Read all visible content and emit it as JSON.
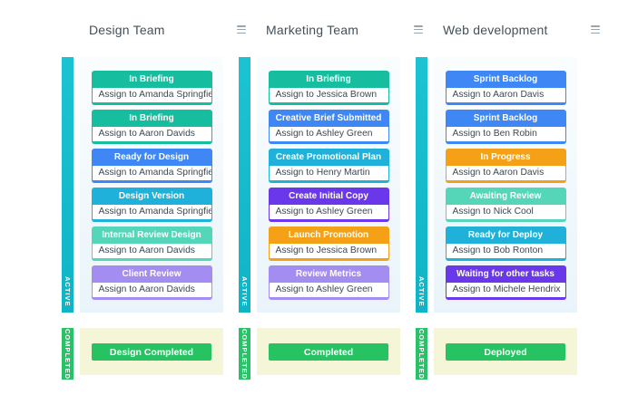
{
  "palette": {
    "teal": "#16bd9e",
    "blue": "#3e87f5",
    "cyan": "#1fb1d9",
    "mint": "#55d6b9",
    "lavender": "#a48df1",
    "violet": "#6a38ea",
    "orange": "#f4a118",
    "active_bar": "#12b9c9",
    "completed_bar": "#2bc168",
    "completed_panel": "#f5f5d8",
    "button_green": "#27c261"
  },
  "board": {
    "columns": [
      {
        "title": "Design Team",
        "active_label": "ACTIVE",
        "completed_label": "COMPLETED",
        "completed_button": "Design Completed",
        "cards": [
          {
            "status": "In Briefing",
            "color": "teal",
            "assignee": "Assign to Amanda Springfield"
          },
          {
            "status": "In Briefing",
            "color": "teal",
            "assignee": "Assign to Aaron Davids"
          },
          {
            "status": "Ready for Design",
            "color": "blue",
            "assignee": "Assign to Amanda Springfield"
          },
          {
            "status": "Design Version",
            "color": "cyan",
            "assignee": "Assign to Amanda Springfield"
          },
          {
            "status": "Internal Review Design",
            "color": "mint",
            "assignee": "Assign to Aaron Davids"
          },
          {
            "status": "Client Review",
            "color": "lavender",
            "assignee": "Assign to Aaron Davids"
          }
        ]
      },
      {
        "title": "Marketing Team",
        "active_label": "ACTIVE",
        "completed_label": "COMPLETED",
        "completed_button": "Completed",
        "cards": [
          {
            "status": "In Briefing",
            "color": "teal",
            "assignee": "Assign to Jessica Brown"
          },
          {
            "status": "Creative Brief Submitted",
            "color": "blue",
            "assignee": "Assign to Ashley Green"
          },
          {
            "status": "Create Promotional Plan",
            "color": "cyan",
            "assignee": "Assign to Henry Martin"
          },
          {
            "status": "Create Initial Copy",
            "color": "violet",
            "assignee": "Assign to Ashley Green"
          },
          {
            "status": "Launch Promotion",
            "color": "orange",
            "assignee": "Assign to Jessica Brown"
          },
          {
            "status": "Review Metrics",
            "color": "lavender",
            "assignee": "Assign to Ashley Green"
          }
        ]
      },
      {
        "title": "Web development",
        "active_label": "ACTIVE",
        "completed_label": "COMPLETED",
        "completed_button": "Deployed",
        "cards": [
          {
            "status": "Sprint Backlog",
            "color": "blue",
            "assignee": "Assign to Aaron Davis"
          },
          {
            "status": "Sprint Backlog",
            "color": "blue",
            "assignee": "Assign to Ben Robin"
          },
          {
            "status": "In Progress",
            "color": "orange",
            "assignee": "Assign to Aaron Davis"
          },
          {
            "status": "Awaiting Review",
            "color": "mint",
            "assignee": "Assign to Nick Cool"
          },
          {
            "status": "Ready for Deploy",
            "color": "cyan",
            "assignee": "Assign to Bob Ronton"
          },
          {
            "status": "Waiting for other tasks",
            "color": "violet",
            "assignee": "Assign to Michele Hendrix"
          }
        ]
      }
    ],
    "column_left_offsets": [
      68,
      263,
      458
    ]
  }
}
